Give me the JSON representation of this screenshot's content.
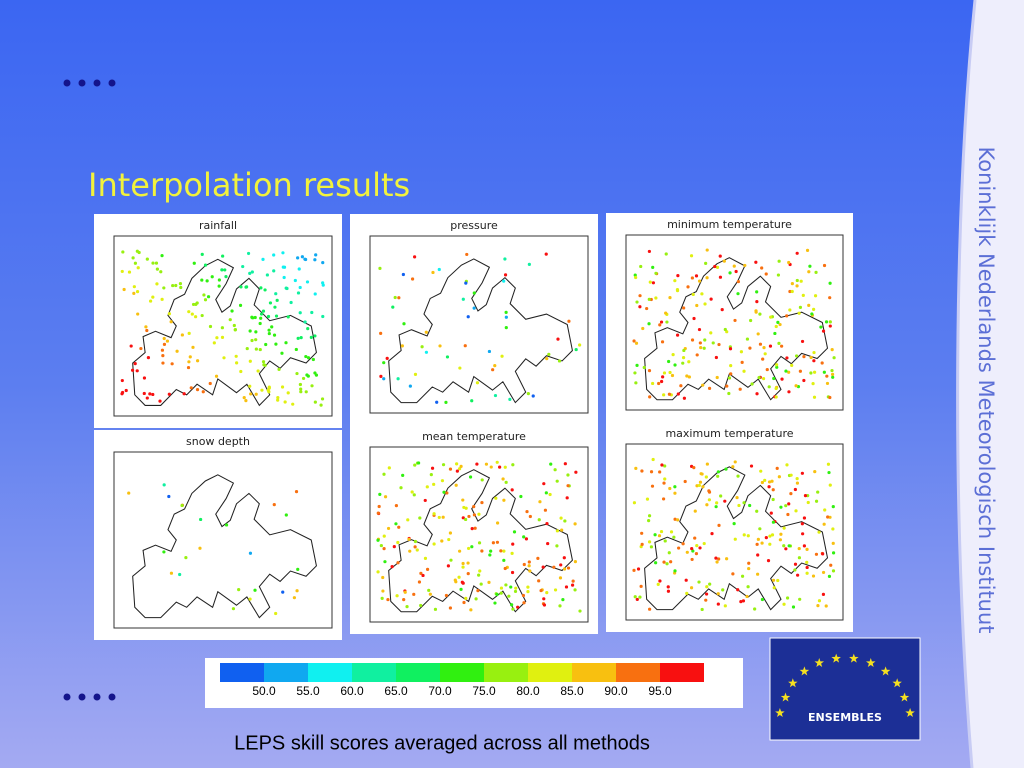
{
  "slide": {
    "title": "Interpolation results",
    "side_text": "Koninklijk Nederlands Meteorologisch Instituut",
    "panels": [
      {
        "title": "rainfall"
      },
      {
        "title": "snow depth"
      },
      {
        "title": "pressure"
      },
      {
        "title": "mean temperature"
      },
      {
        "title": "minimum temperature"
      },
      {
        "title": "maximum temperature"
      }
    ],
    "colorbar": {
      "colors": [
        "#1060f0",
        "#10a8f0",
        "#10f0f0",
        "#10f0a0",
        "#10f060",
        "#30f010",
        "#98f010",
        "#e0f010",
        "#f8c010",
        "#f87010",
        "#f81010"
      ],
      "labels": [
        "50.0",
        "55.0",
        "60.0",
        "65.0",
        "70.0",
        "75.0",
        "80.0",
        "85.0",
        "90.0",
        "95.0"
      ]
    },
    "logo": "ENSEMBLES",
    "caption": "LEPS skill scores averaged across all methods"
  }
}
